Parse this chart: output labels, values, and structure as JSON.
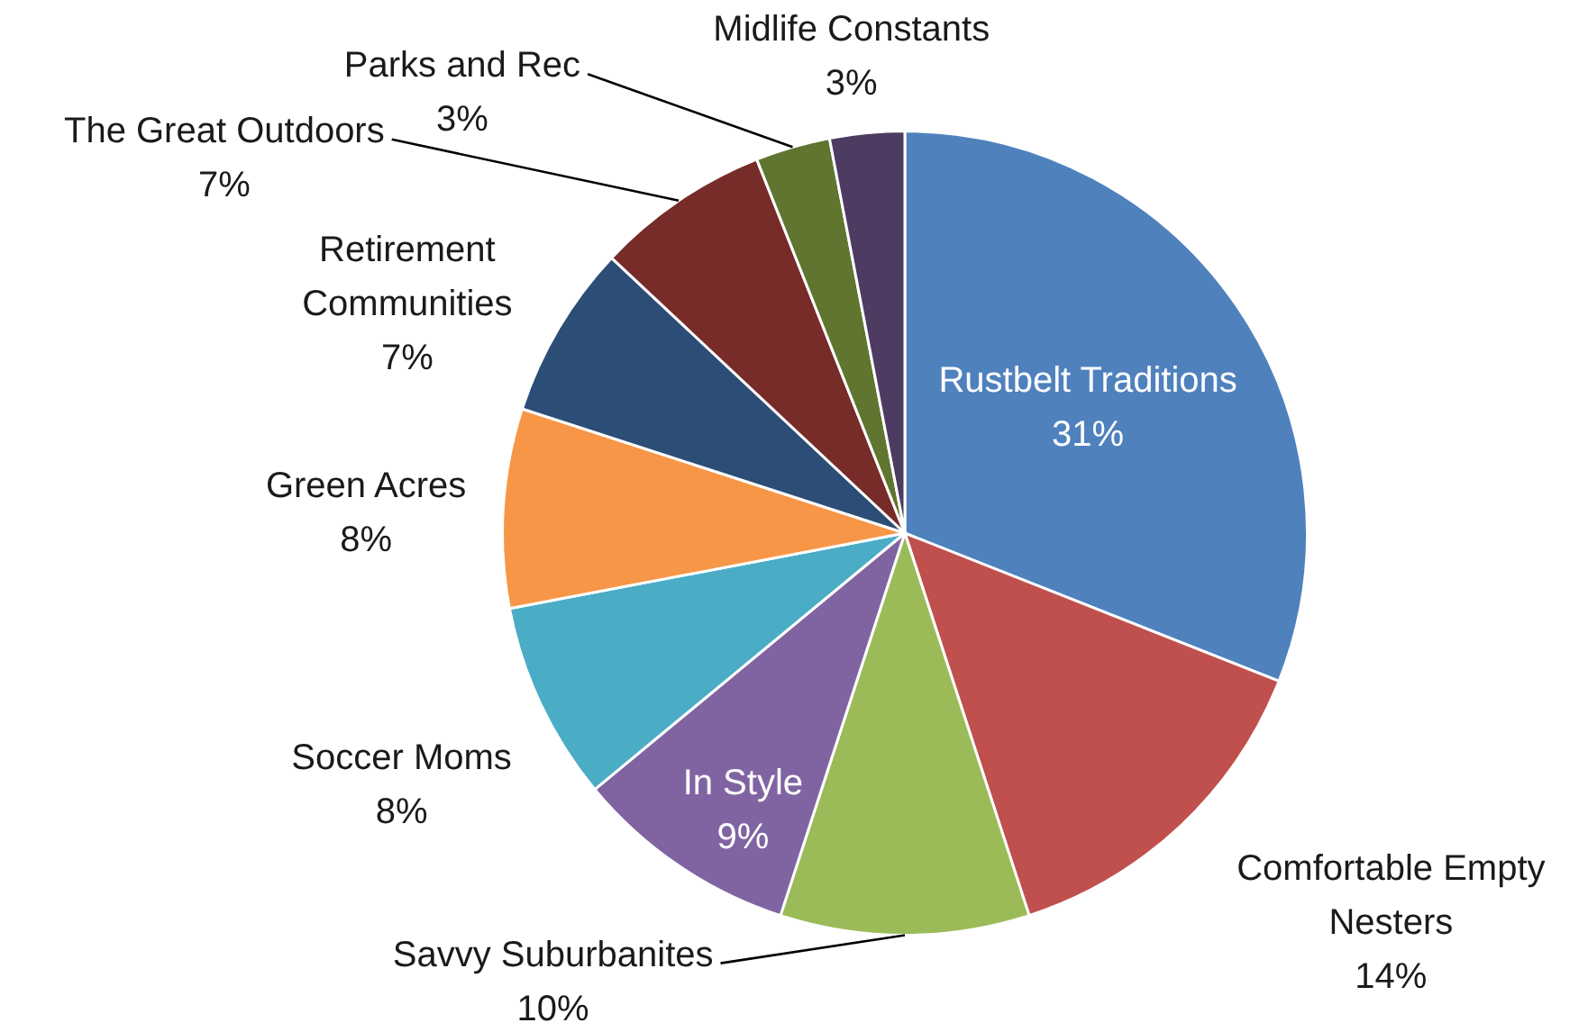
{
  "chart_data": {
    "type": "pie",
    "categories": [
      "Rustbelt Traditions",
      "Comfortable Empty Nesters",
      "Savvy Suburbanites",
      "In Style",
      "Soccer Moms",
      "Green Acres",
      "Retirement Communities",
      "The Great Outdoors",
      "Parks and Rec",
      "Midlife Constants"
    ],
    "values": [
      31,
      14,
      10,
      9,
      8,
      8,
      7,
      7,
      3,
      3
    ],
    "value_labels": [
      "31%",
      "14%",
      "10%",
      "9%",
      "8%",
      "8%",
      "7%",
      "7%",
      "3%",
      "3%"
    ],
    "colors": [
      "#4f81bd",
      "#c0504d",
      "#9bbb59",
      "#8064a2",
      "#4bacc6",
      "#f79646",
      "#2c4d75",
      "#772c2a",
      "#5f7530",
      "#4d3b62"
    ],
    "legend": false
  }
}
